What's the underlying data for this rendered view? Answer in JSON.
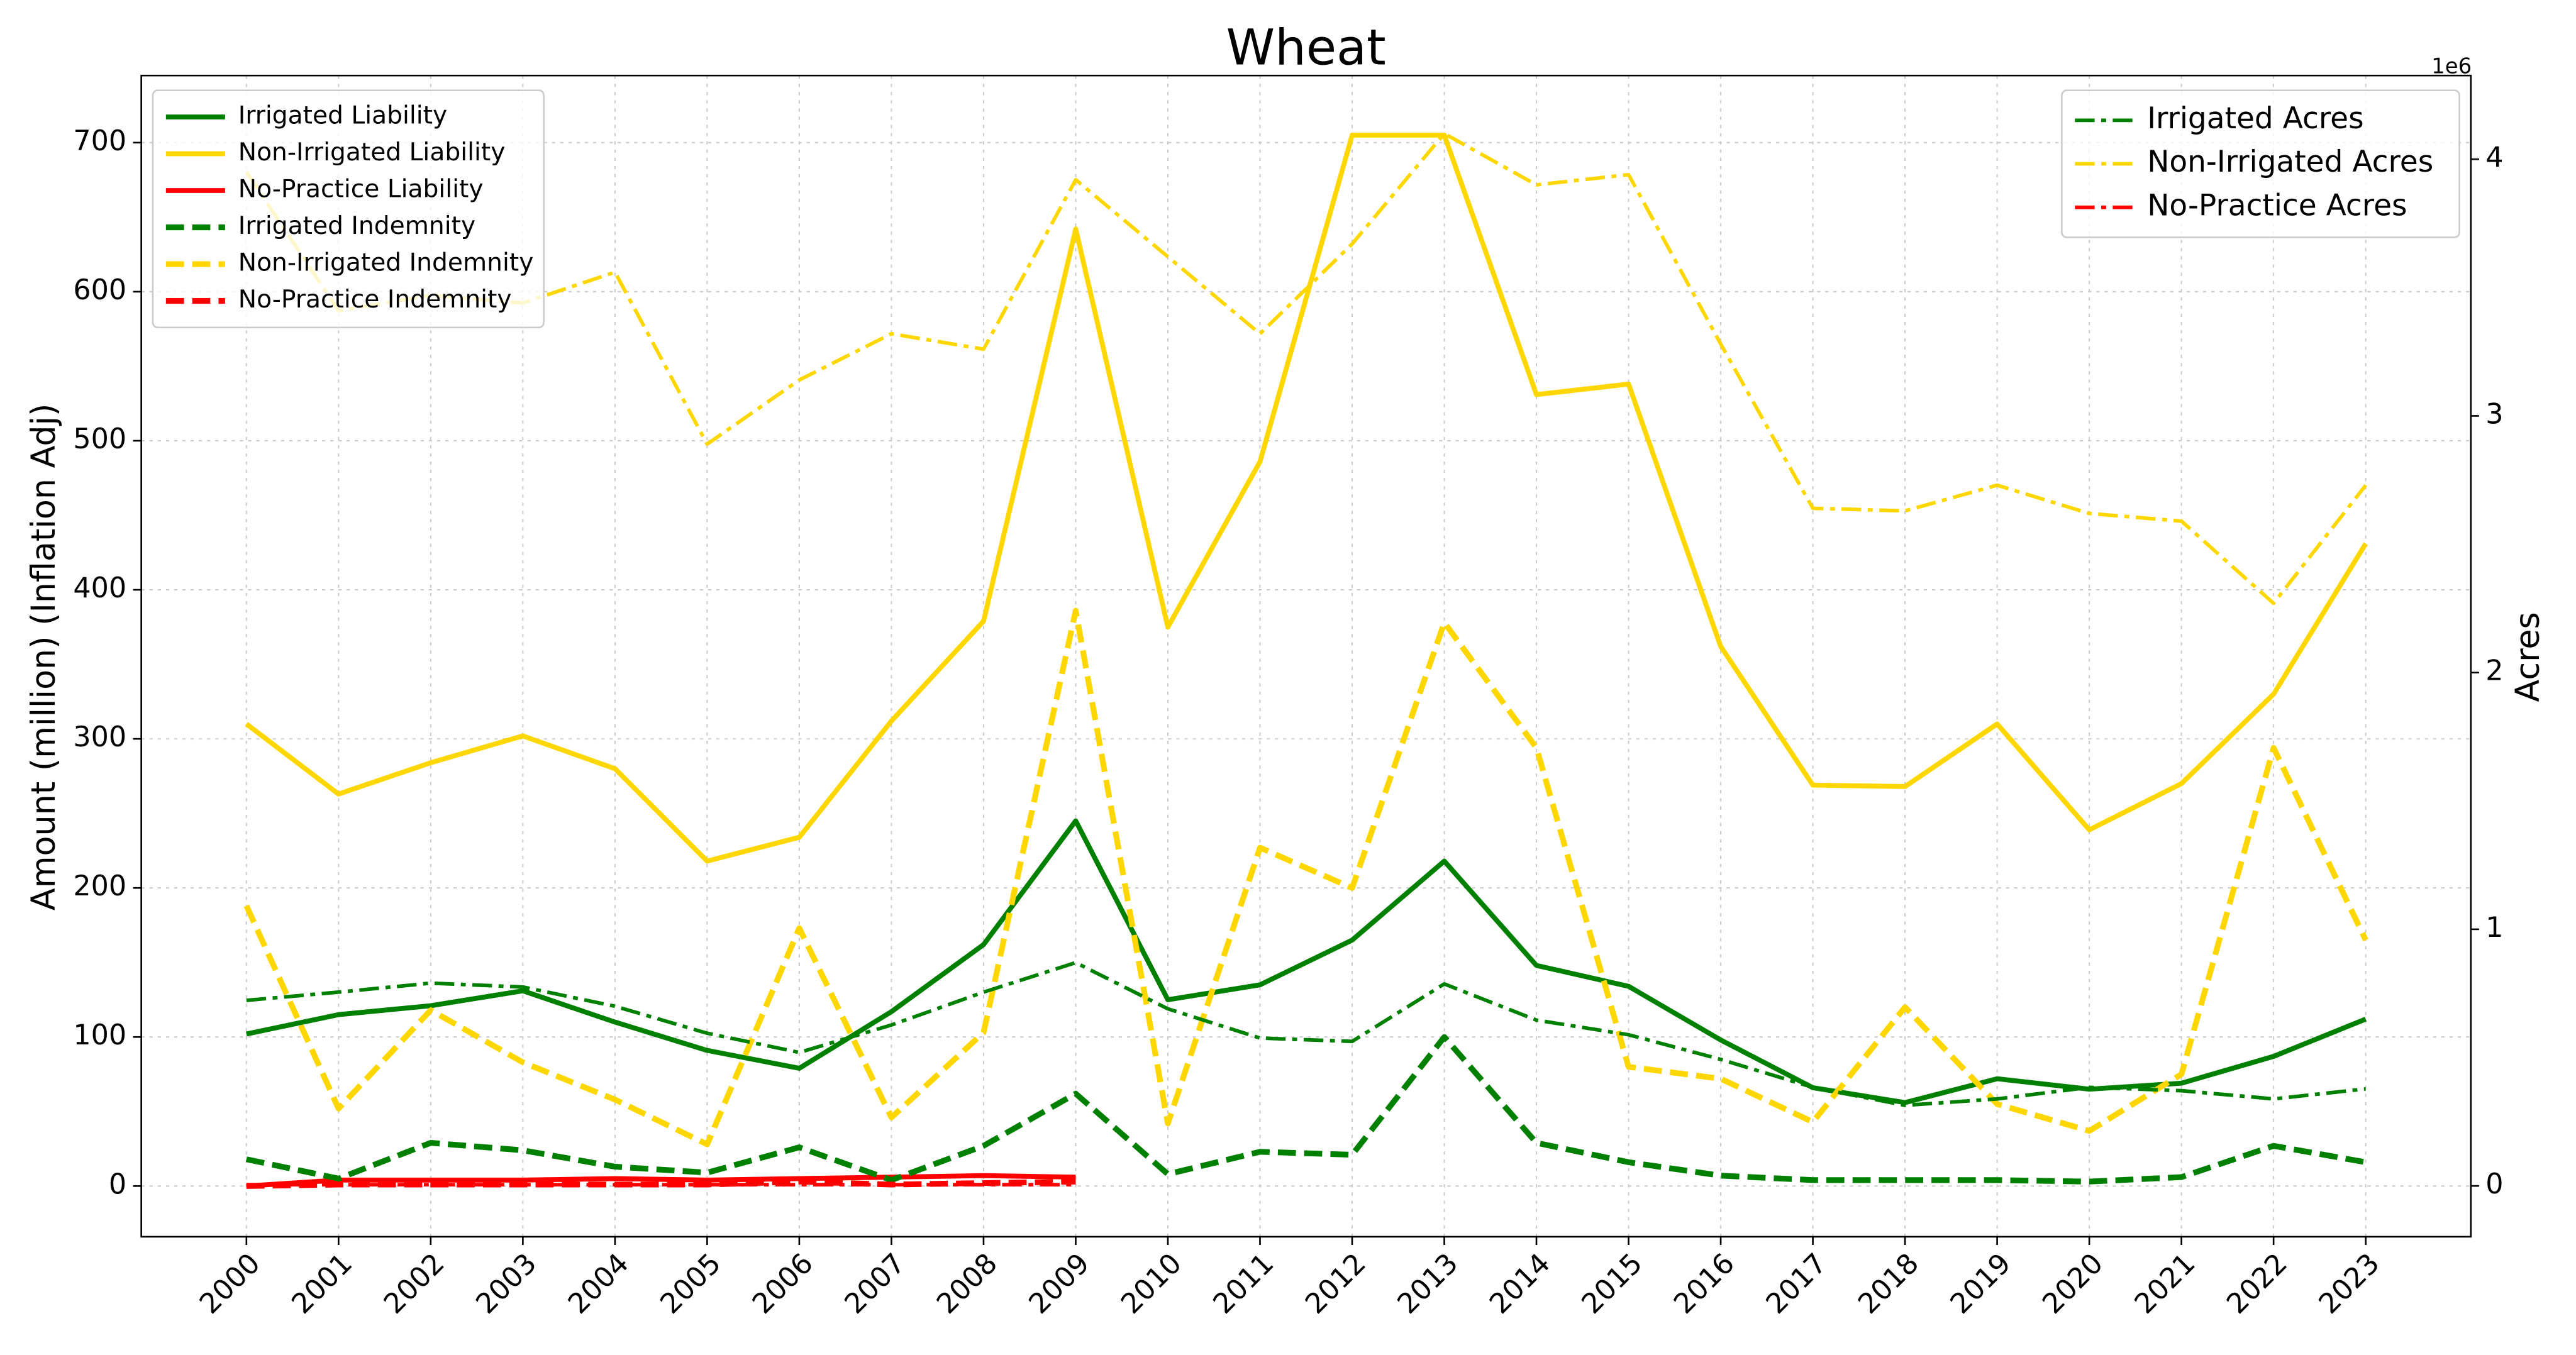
{
  "chart_data": {
    "type": "line",
    "title": "Wheat",
    "ylabel": "Amount (million) (Inflation Adj)",
    "y2label": "Acres",
    "y2_offset_label": "1e6",
    "categories": [
      "2000",
      "2001",
      "2002",
      "2003",
      "2004",
      "2005",
      "2006",
      "2007",
      "2008",
      "2009",
      "2010",
      "2011",
      "2012",
      "2013",
      "2014",
      "2015",
      "2016",
      "2017",
      "2018",
      "2019",
      "2020",
      "2021",
      "2022",
      "2023"
    ],
    "ylim": [
      -34,
      745
    ],
    "yticks": [
      0,
      100,
      200,
      300,
      400,
      500,
      600,
      700
    ],
    "y2lim": [
      -198000,
      4326000
    ],
    "y2ticks": [
      {
        "value": 0,
        "label": "0"
      },
      {
        "value": 1000000,
        "label": "1"
      },
      {
        "value": 2000000,
        "label": "2"
      },
      {
        "value": 3000000,
        "label": "3"
      },
      {
        "value": 4000000,
        "label": "4"
      }
    ],
    "grid": true,
    "legend": "upper left",
    "legend2": "upper right",
    "series": [
      {
        "name": "Irrigated Liability",
        "color": "#008000",
        "linestyle": "solid",
        "axis": "y",
        "values": [
          102,
          115,
          121,
          131,
          110,
          91,
          79,
          117,
          162,
          245,
          125,
          135,
          165,
          218,
          148,
          134,
          98,
          66,
          56,
          72,
          65,
          69,
          87,
          112
        ]
      },
      {
        "name": "Non-Irrigated Liability",
        "color": "#ffd700",
        "linestyle": "solid",
        "axis": "y",
        "values": [
          310,
          263,
          284,
          302,
          280,
          218,
          234,
          312,
          379,
          642,
          375,
          486,
          705,
          705,
          531,
          538,
          362,
          269,
          268,
          310,
          239,
          270,
          330,
          431
        ]
      },
      {
        "name": "No-Practice Liability",
        "color": "#ff0000",
        "linestyle": "solid",
        "axis": "y",
        "values": [
          0,
          4,
          4,
          4,
          5,
          4,
          5,
          6,
          7,
          6,
          null,
          null,
          null,
          null,
          null,
          null,
          null,
          null,
          null,
          null,
          null,
          null,
          null,
          null
        ]
      },
      {
        "name": "Irrigated Indemnity",
        "color": "#008000",
        "linestyle": "dashed",
        "axis": "y",
        "values": [
          18,
          5,
          29,
          24,
          13,
          9,
          26,
          4,
          27,
          62,
          8,
          23,
          21,
          100,
          29,
          16,
          7,
          4,
          4,
          4,
          3,
          6,
          27,
          16
        ]
      },
      {
        "name": "Non-Irrigated Indemnity",
        "color": "#ffd700",
        "linestyle": "dashed",
        "axis": "y",
        "values": [
          188,
          52,
          118,
          83,
          58,
          28,
          173,
          46,
          103,
          386,
          42,
          227,
          200,
          378,
          294,
          80,
          72,
          43,
          120,
          55,
          37,
          75,
          294,
          165
        ]
      },
      {
        "name": "No-Practice Indemnity",
        "color": "#ff0000",
        "linestyle": "dashed",
        "axis": "y",
        "values": [
          0,
          1,
          1,
          1,
          1,
          1,
          3,
          1,
          2,
          3,
          null,
          null,
          null,
          null,
          null,
          null,
          null,
          null,
          null,
          null,
          null,
          null,
          null,
          null
        ]
      },
      {
        "name": "Irrigated Acres",
        "color": "#008000",
        "linestyle": "dashdot",
        "axis": "y2",
        "values": [
          723000,
          755000,
          790000,
          775000,
          700000,
          595000,
          520000,
          627000,
          755000,
          870000,
          690000,
          576000,
          563000,
          787000,
          646000,
          589000,
          493000,
          384000,
          314000,
          339000,
          384000,
          371000,
          339000,
          378000
        ]
      },
      {
        "name": "Non-Irrigated Acres",
        "color": "#ffd700",
        "linestyle": "dashdot",
        "axis": "y2",
        "values": [
          3950000,
          3410000,
          3470000,
          3440000,
          3560000,
          2890000,
          3140000,
          3320000,
          3260000,
          3920000,
          3620000,
          3320000,
          3670000,
          4100000,
          3900000,
          3940000,
          3280000,
          2640000,
          2630000,
          2730000,
          2620000,
          2590000,
          2270000,
          2730000
        ]
      },
      {
        "name": "No-Practice Acres",
        "color": "#ff0000",
        "linestyle": "dashdot",
        "axis": "y2",
        "values": [
          5000,
          5000,
          5000,
          5000,
          5000,
          5000,
          5000,
          5000,
          5000,
          5000,
          null,
          null,
          null,
          null,
          null,
          null,
          null,
          null,
          null,
          null,
          null,
          null,
          null,
          null
        ]
      }
    ]
  }
}
